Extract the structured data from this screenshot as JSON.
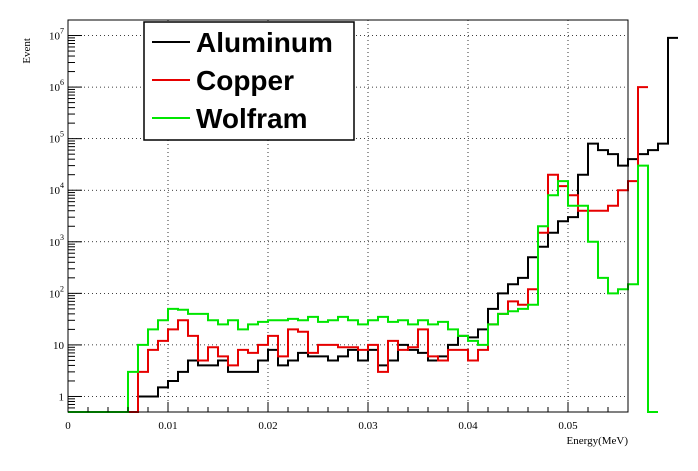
{
  "chart_data": {
    "type": "histogram-step",
    "xlabel": "Energy(MeV)",
    "ylabel": "Event",
    "xlim": [
      0,
      0.056
    ],
    "ylim": [
      0.5,
      20000000
    ],
    "yscale": "log",
    "grid": true,
    "legend_position": "top-left",
    "bin_width": 0.001,
    "x_ticks": [
      {
        "value": 0,
        "label": "0"
      },
      {
        "value": 0.01,
        "label": "0.01"
      },
      {
        "value": 0.02,
        "label": "0.02"
      },
      {
        "value": 0.03,
        "label": "0.03"
      },
      {
        "value": 0.04,
        "label": "0.04"
      },
      {
        "value": 0.05,
        "label": "0.05"
      }
    ],
    "y_ticks": [
      {
        "value": 1,
        "base": "1",
        "exp": ""
      },
      {
        "value": 10,
        "base": "10",
        "exp": ""
      },
      {
        "value": 100,
        "base": "10",
        "exp": "2"
      },
      {
        "value": 1000,
        "base": "10",
        "exp": "3"
      },
      {
        "value": 10000,
        "base": "10",
        "exp": "4"
      },
      {
        "value": 100000,
        "base": "10",
        "exp": "5"
      },
      {
        "value": 1000000,
        "base": "10",
        "exp": "6"
      },
      {
        "value": 10000000,
        "base": "10",
        "exp": "7"
      }
    ],
    "series": [
      {
        "name": "Aluminum",
        "color": "#000000",
        "values": [
          0,
          0,
          0,
          0,
          0,
          0,
          0,
          1,
          1,
          1.5,
          2,
          3,
          5,
          4,
          4,
          5,
          3,
          3,
          3,
          5,
          8,
          4,
          5,
          7,
          6,
          6,
          5,
          6,
          8,
          5,
          8,
          4,
          5,
          10,
          8,
          7,
          5,
          6,
          10,
          15,
          14,
          20,
          50,
          100,
          150,
          200,
          500,
          800,
          1500,
          2500,
          3000,
          20000,
          80000,
          60000,
          50000,
          30000,
          40000,
          50000,
          60000,
          80000,
          9000000
        ]
      },
      {
        "name": "Copper",
        "color": "#e60000",
        "values": [
          0,
          0,
          0,
          0,
          0,
          0,
          0.5,
          3,
          8,
          12,
          20,
          30,
          15,
          5,
          9,
          6,
          4,
          8,
          7,
          10,
          15,
          6,
          20,
          18,
          7,
          10,
          10,
          9,
          9,
          8,
          10,
          3,
          12,
          8,
          9,
          20,
          6,
          5,
          8,
          8,
          5,
          8,
          25,
          40,
          70,
          60,
          120,
          1500,
          20000,
          12000,
          8000,
          4000,
          4000,
          4000,
          5000,
          10000,
          15000,
          1000000
        ]
      },
      {
        "name": "Wolfram",
        "color": "#00e600",
        "values": [
          0,
          0,
          0,
          0,
          0,
          0,
          3,
          10,
          20,
          30,
          50,
          48,
          40,
          40,
          30,
          25,
          30,
          20,
          25,
          28,
          30,
          30,
          32,
          30,
          35,
          28,
          30,
          35,
          30,
          25,
          30,
          35,
          28,
          30,
          25,
          30,
          25,
          28,
          20,
          15,
          12,
          10,
          25,
          40,
          45,
          50,
          60,
          2000,
          8000,
          15000,
          5000,
          5000,
          1000,
          200,
          100,
          120,
          150,
          30000,
          0
        ]
      }
    ]
  }
}
